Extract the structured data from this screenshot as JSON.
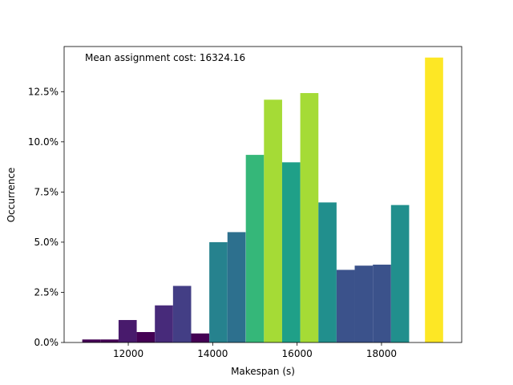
{
  "chart_data": {
    "type": "bar",
    "annotation": "Mean assignment cost: 16324.16",
    "xlabel": "Makespan (s)",
    "ylabel": "Occurrence",
    "xlim": [
      10480,
      19900
    ],
    "ylim": [
      0,
      0.1475
    ],
    "x_ticks": [
      12000,
      14000,
      16000,
      18000
    ],
    "x_tick_labels": [
      "12000",
      "14000",
      "16000",
      "18000"
    ],
    "y_ticks": [
      0,
      0.025,
      0.05,
      0.075,
      0.1,
      0.125
    ],
    "y_tick_labels": [
      "0.0%",
      "2.5%",
      "5.0%",
      "7.5%",
      "10.0%",
      "12.5%"
    ],
    "grid": false,
    "bar_width": 430,
    "bars": [
      {
        "x": 11125,
        "value": 0.0015,
        "color": "#440154"
      },
      {
        "x": 11555,
        "value": 0.0015,
        "color": "#440154"
      },
      {
        "x": 11985,
        "value": 0.0112,
        "color": "#481a6c"
      },
      {
        "x": 12415,
        "value": 0.0052,
        "color": "#440154"
      },
      {
        "x": 12845,
        "value": 0.0185,
        "color": "#472a7a"
      },
      {
        "x": 13275,
        "value": 0.0282,
        "color": "#433e85"
      },
      {
        "x": 13705,
        "value": 0.0045,
        "color": "#440154"
      },
      {
        "x": 14135,
        "value": 0.05,
        "color": "#26828e"
      },
      {
        "x": 14565,
        "value": 0.055,
        "color": "#2d708e"
      },
      {
        "x": 15000,
        "value": 0.0935,
        "color": "#35b779"
      },
      {
        "x": 15430,
        "value": 0.121,
        "color": "#a5db36"
      },
      {
        "x": 15860,
        "value": 0.0898,
        "color": "#1fa088"
      },
      {
        "x": 16290,
        "value": 0.1243,
        "color": "#a5db36"
      },
      {
        "x": 16720,
        "value": 0.0698,
        "color": "#218f8d"
      },
      {
        "x": 17150,
        "value": 0.0362,
        "color": "#3b528b"
      },
      {
        "x": 17580,
        "value": 0.0383,
        "color": "#3b528b"
      },
      {
        "x": 18010,
        "value": 0.0388,
        "color": "#3b528b"
      },
      {
        "x": 18440,
        "value": 0.0685,
        "color": "#218f8d"
      },
      {
        "x": 19245,
        "value": 0.142,
        "color": "#fde725"
      }
    ]
  }
}
